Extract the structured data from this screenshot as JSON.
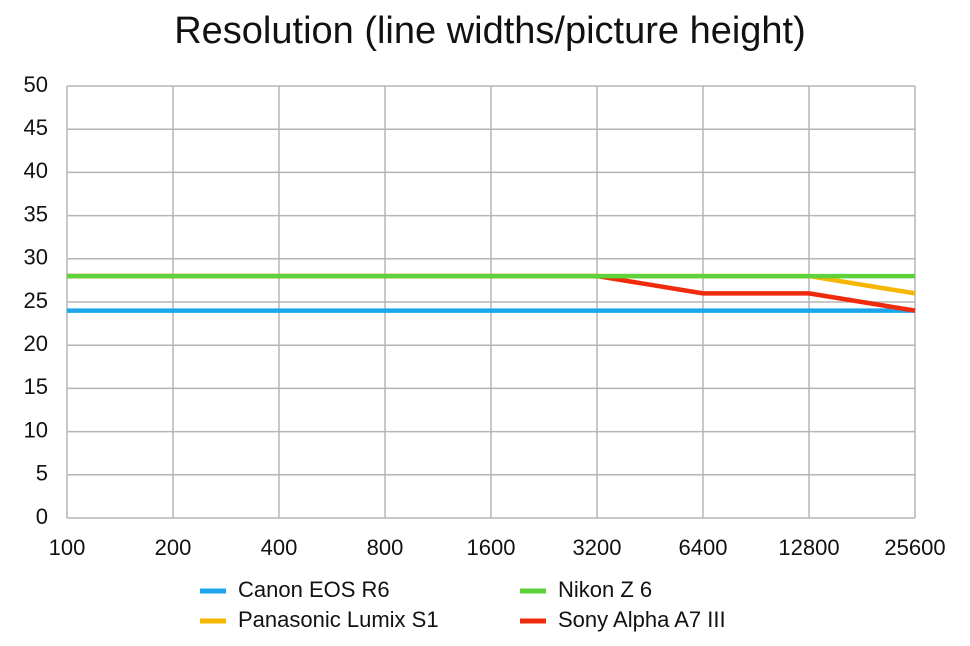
{
  "chart_data": {
    "type": "line",
    "title": "Resolution (line widths/picture height)",
    "categories": [
      "100",
      "200",
      "400",
      "800",
      "1600",
      "3200",
      "6400",
      "12800",
      "25600"
    ],
    "series": [
      {
        "name": "Canon EOS R6",
        "color": "#1ba6ec",
        "values": [
          24,
          24,
          24,
          24,
          24,
          24,
          24,
          24,
          24
        ]
      },
      {
        "name": "Nikon Z 6",
        "color": "#5dd23a",
        "values": [
          28,
          28,
          28,
          28,
          28,
          28,
          28,
          28,
          28
        ]
      },
      {
        "name": "Panasonic Lumix S1",
        "color": "#f5b700",
        "values": [
          28,
          28,
          28,
          28,
          28,
          28,
          28,
          28,
          26
        ]
      },
      {
        "name": "Sony Alpha A7 III",
        "color": "#f02a0c",
        "values": [
          28,
          28,
          28,
          28,
          28,
          28,
          26,
          26,
          24
        ]
      }
    ],
    "ylim": [
      0,
      50
    ],
    "yticks": [
      0,
      5,
      10,
      15,
      20,
      25,
      30,
      35,
      40,
      45,
      50
    ],
    "grid": true
  }
}
